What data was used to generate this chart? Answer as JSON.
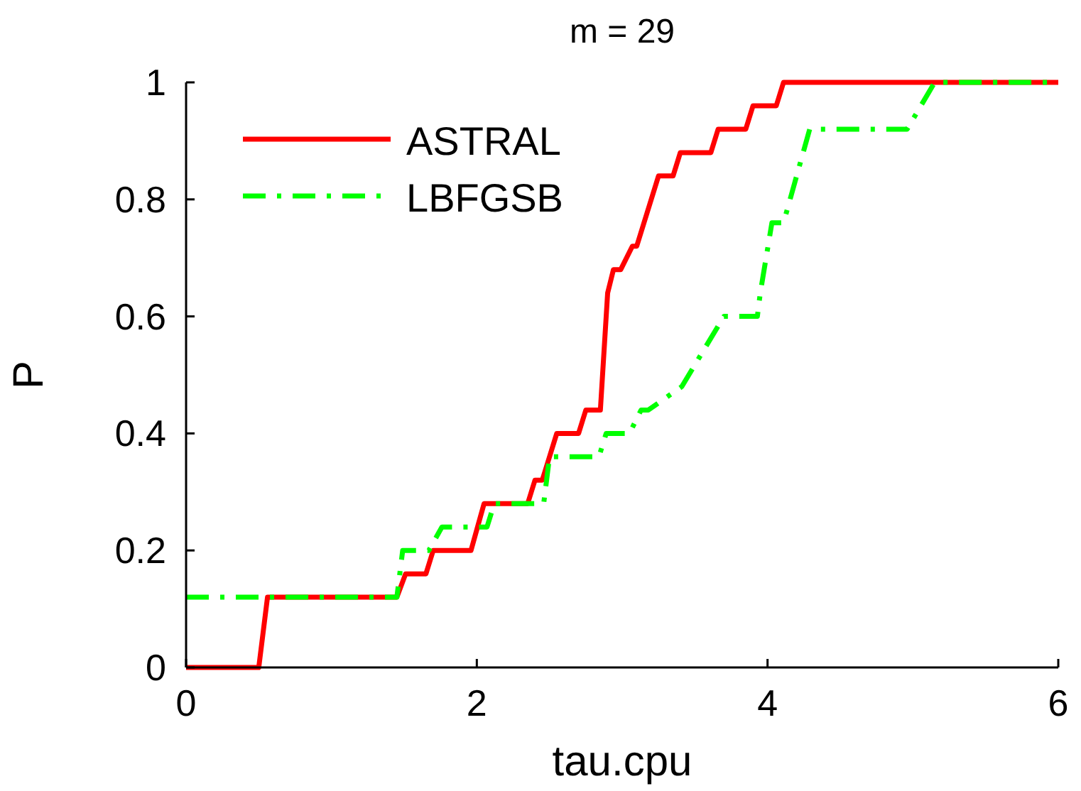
{
  "chart_data": {
    "type": "line",
    "title": "m = 29",
    "xlabel": "tau.cpu",
    "ylabel": "P",
    "xlim": [
      0,
      6
    ],
    "xticks": [
      0,
      2,
      4,
      6
    ],
    "ylim": [
      0,
      1
    ],
    "yticks": [
      0,
      0.2,
      0.4,
      0.6,
      0.8,
      1
    ],
    "grid": false,
    "legend": "top left",
    "marker": "none",
    "series": [
      {
        "name": "ASTRAL",
        "color": "#ff0000",
        "line_style": "solid",
        "x": [
          0,
          0.5,
          0.56,
          1.45,
          1.51,
          1.65,
          1.7,
          1.96,
          2.05,
          2.35,
          2.4,
          2.45,
          2.55,
          2.7,
          2.75,
          2.85,
          2.9,
          2.94,
          2.99,
          3.07,
          3.1,
          3.25,
          3.35,
          3.4,
          3.61,
          3.66,
          3.85,
          3.9,
          4.06,
          4.11,
          6
        ],
        "values": [
          0,
          0,
          0.12,
          0.12,
          0.16,
          0.16,
          0.2,
          0.2,
          0.28,
          0.28,
          0.32,
          0.32,
          0.4,
          0.4,
          0.44,
          0.44,
          0.64,
          0.68,
          0.68,
          0.72,
          0.72,
          0.84,
          0.84,
          0.88,
          0.88,
          0.92,
          0.92,
          0.96,
          0.96,
          1,
          1
        ]
      },
      {
        "name": "LBFGSB",
        "color": "#00ff00",
        "line_style": "dashed",
        "x": [
          0,
          1.45,
          1.49,
          1.67,
          1.76,
          2.07,
          2.12,
          2.46,
          2.5,
          2.84,
          2.89,
          3.05,
          3.13,
          3.18,
          3.41,
          3.7,
          3.93,
          3.95,
          4.03,
          4.11,
          4.29,
          4.96,
          5.15,
          6
        ],
        "values": [
          0.12,
          0.12,
          0.2,
          0.2,
          0.24,
          0.24,
          0.28,
          0.28,
          0.36,
          0.36,
          0.4,
          0.4,
          0.44,
          0.44,
          0.48,
          0.6,
          0.6,
          0.64,
          0.76,
          0.76,
          0.92,
          0.92,
          1,
          1
        ]
      }
    ]
  }
}
